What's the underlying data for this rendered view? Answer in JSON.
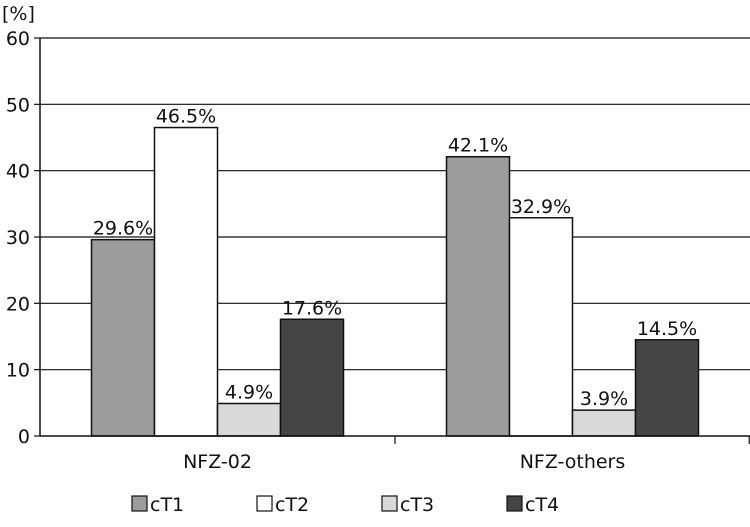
{
  "chart_data": {
    "type": "bar",
    "ylabel": "[%]",
    "ylim": [
      0,
      60
    ],
    "yticks": [
      0,
      10,
      20,
      30,
      40,
      50,
      60
    ],
    "grid": true,
    "legend_position": "bottom",
    "categories": [
      "NFZ-02",
      "NFZ-others"
    ],
    "series": [
      {
        "name": "cT1",
        "color": "#9c9c9c",
        "values": [
          29.6,
          42.1
        ],
        "labels": [
          "29.6%",
          "42.1%"
        ]
      },
      {
        "name": "cT2",
        "color": "#ffffff",
        "values": [
          46.5,
          32.9
        ],
        "labels": [
          "46.5%",
          "32.9%"
        ]
      },
      {
        "name": "cT3",
        "color": "#d9d9d9",
        "values": [
          4.9,
          3.9
        ],
        "labels": [
          "4.9%",
          "3.9%"
        ]
      },
      {
        "name": "cT4",
        "color": "#454545",
        "values": [
          17.6,
          14.5
        ],
        "labels": [
          "17.6%",
          "14.5%"
        ]
      }
    ]
  }
}
